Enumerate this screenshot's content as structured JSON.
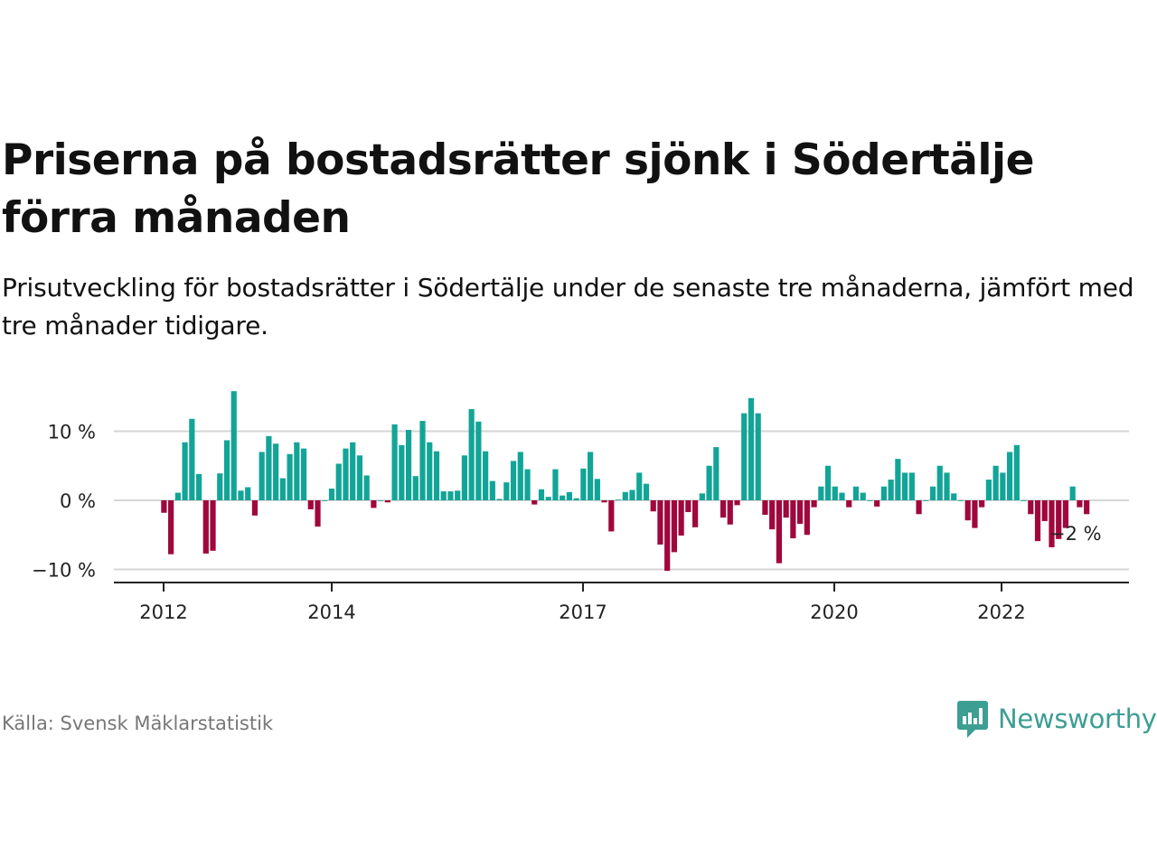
{
  "title": "Priserna på bostadsrätter sjönk i Södertälje förra månaden",
  "subtitle": "Prisutveckling för bostadsrätter i Södertälje under de senaste tre månaderna, jämfört med tre månader tidigare.",
  "source": "Källa: Svensk Mäklarstatistik",
  "logo_text": "Newsworthy",
  "colors": {
    "positive": "#12a597",
    "negative": "#a0073d",
    "logo": "#3d9e93"
  },
  "chart_data": {
    "type": "bar",
    "xlabel": "",
    "ylabel": "",
    "ylim": [
      -11,
      16
    ],
    "y_ticks": [
      {
        "value": 10,
        "label": "10 %"
      },
      {
        "value": 0,
        "label": "0 %"
      },
      {
        "value": -10,
        "label": "−10 %"
      }
    ],
    "x_ticks": [
      "2012",
      "2014",
      "2017",
      "2020",
      "2022"
    ],
    "grid": true,
    "annotation": "−2 %",
    "values": [
      -1.8,
      -7.8,
      1.1,
      8.4,
      11.8,
      3.8,
      -7.7,
      -7.3,
      3.9,
      8.7,
      15.8,
      1.4,
      1.9,
      -2.2,
      7.0,
      9.3,
      8.2,
      3.2,
      6.7,
      8.4,
      7.5,
      -1.3,
      -3.8,
      0.0,
      1.7,
      5.3,
      7.5,
      8.4,
      6.5,
      3.6,
      -1.1,
      0.0,
      -0.3,
      11.0,
      8.0,
      10.2,
      3.5,
      11.5,
      8.4,
      7.1,
      1.3,
      1.3,
      1.4,
      6.5,
      13.2,
      11.4,
      7.1,
      2.8,
      0.2,
      2.6,
      5.7,
      7.0,
      4.5,
      -0.6,
      1.6,
      0.5,
      4.5,
      0.7,
      1.2,
      0.3,
      4.6,
      7.0,
      3.1,
      -0.3,
      -4.5,
      0.1,
      1.2,
      1.5,
      4.0,
      2.4,
      -1.6,
      -6.4,
      -10.2,
      -7.5,
      -5.1,
      -1.7,
      -3.9,
      1.0,
      5.0,
      7.7,
      -2.5,
      -3.5,
      -0.7,
      12.6,
      14.8,
      12.6,
      -2.1,
      -4.2,
      -9.1,
      -2.5,
      -5.5,
      -3.4,
      -5.0,
      -1.0,
      2.0,
      5.0,
      2.0,
      1.1,
      -1.0,
      2.0,
      1.1,
      0.0,
      -0.9,
      2.0,
      3.0,
      6.0,
      4.0,
      4.0,
      -2.0,
      0.0,
      2.0,
      5.0,
      4.0,
      1.0,
      0.0,
      -2.9,
      -4.0,
      -1.0,
      3.0,
      5.0,
      4.0,
      7.0,
      8.0,
      0.0,
      -2.0,
      -5.9,
      -3.0,
      -6.8,
      -5.6,
      -4.0,
      2.0,
      -1.0,
      -2.0
    ]
  }
}
